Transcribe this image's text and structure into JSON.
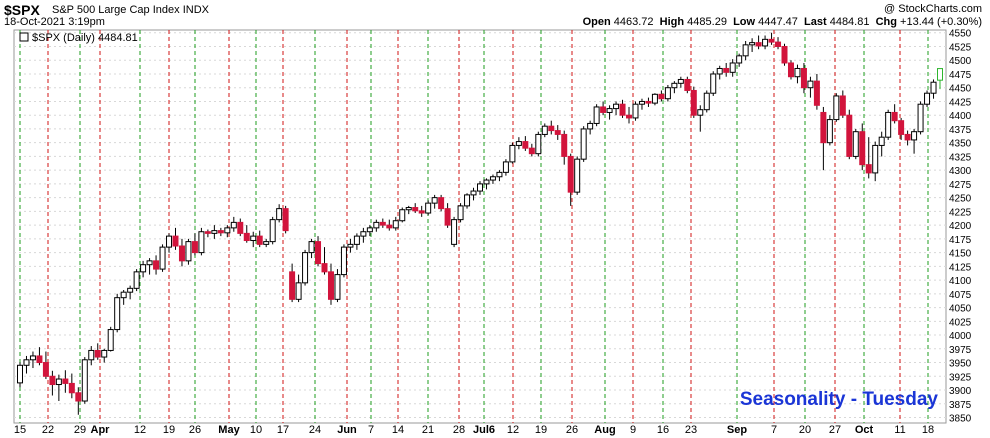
{
  "header": {
    "symbol": "$SPX",
    "name": "S&P 500 Large Cap Index",
    "exchange": "INDX",
    "brand": "@ StockCharts.com",
    "date": "18-Oct-2021 3:19pm",
    "open_label": "Open",
    "open": "4463.72",
    "high_label": "High",
    "high": "4485.29",
    "low_label": "Low",
    "low": "4447.47",
    "last_label": "Last",
    "last": "4484.81",
    "chg_label": "Chg",
    "chg": "+13.44 (+0.30%)"
  },
  "legend": {
    "text": "$SPX (Daily) 4484.81"
  },
  "annotation": {
    "text": "Seasonality - Tuesday",
    "color": "#1a35d6"
  },
  "colors": {
    "down": "#d2143c",
    "up_last": "#2db52d",
    "tuesday_line": "#d21414",
    "month_line": "#1f9e1f",
    "grid": "#d8d8d8"
  },
  "chart_data": {
    "type": "candlestick",
    "title": "$SPX (Daily) 4484.81",
    "xlabel": "",
    "ylabel": "",
    "ylim": [
      3840,
      4555
    ],
    "y_ticks": [
      3850,
      3875,
      3900,
      3925,
      3950,
      3975,
      4000,
      4025,
      4050,
      4075,
      4100,
      4125,
      4150,
      4175,
      4200,
      4225,
      4250,
      4275,
      4300,
      4325,
      4350,
      4375,
      4400,
      4425,
      4450,
      4475,
      4500,
      4525,
      4550
    ],
    "x_tick_labels": [
      "15",
      "22",
      "29",
      "Apr",
      "12",
      "19",
      "26",
      "May",
      "10",
      "17",
      "24",
      "Jun",
      "7",
      "14",
      "21",
      "28",
      "Jul6",
      "12",
      "19",
      "26",
      "Aug",
      "9",
      "16",
      "23",
      "Sep",
      "7",
      "20",
      "27",
      "Oct",
      "11",
      "18"
    ],
    "bars": [
      [
        3913,
        3950,
        3905,
        3945
      ],
      [
        3945,
        3962,
        3930,
        3955
      ],
      [
        3955,
        3970,
        3940,
        3962
      ],
      [
        3962,
        3978,
        3945,
        3950
      ],
      [
        3950,
        3970,
        3920,
        3925
      ],
      [
        3925,
        3935,
        3890,
        3910
      ],
      [
        3910,
        3928,
        3880,
        3920
      ],
      [
        3920,
        3936,
        3895,
        3912
      ],
      [
        3912,
        3930,
        3885,
        3895
      ],
      [
        3895,
        3905,
        3855,
        3880
      ],
      [
        3880,
        3960,
        3875,
        3955
      ],
      [
        3955,
        3980,
        3945,
        3972
      ],
      [
        3972,
        3985,
        3955,
        3960
      ],
      [
        3960,
        3975,
        3950,
        3972
      ],
      [
        3972,
        4015,
        3970,
        4010
      ],
      [
        4010,
        4075,
        4005,
        4068
      ],
      [
        4068,
        4082,
        4055,
        4078
      ],
      [
        4078,
        4090,
        4065,
        4085
      ],
      [
        4085,
        4120,
        4080,
        4115
      ],
      [
        4115,
        4135,
        4105,
        4128
      ],
      [
        4128,
        4140,
        4110,
        4135
      ],
      [
        4135,
        4145,
        4110,
        4120
      ],
      [
        4120,
        4165,
        4115,
        4160
      ],
      [
        4160,
        4185,
        4150,
        4180
      ],
      [
        4180,
        4195,
        4155,
        4162
      ],
      [
        4162,
        4175,
        4125,
        4135
      ],
      [
        4135,
        4175,
        4128,
        4170
      ],
      [
        4170,
        4185,
        4145,
        4150
      ],
      [
        4150,
        4195,
        4145,
        4188
      ],
      [
        4188,
        4192,
        4178,
        4185
      ],
      [
        4185,
        4200,
        4175,
        4190
      ],
      [
        4190,
        4195,
        4180,
        4186
      ],
      [
        4186,
        4200,
        4178,
        4195
      ],
      [
        4195,
        4215,
        4188,
        4205
      ],
      [
        4205,
        4212,
        4180,
        4185
      ],
      [
        4185,
        4200,
        4168,
        4172
      ],
      [
        4172,
        4188,
        4160,
        4180
      ],
      [
        4180,
        4190,
        4160,
        4165
      ],
      [
        4165,
        4175,
        4160,
        4170
      ],
      [
        4170,
        4215,
        4165,
        4210
      ],
      [
        4210,
        4238,
        4205,
        4230
      ],
      [
        4230,
        4235,
        4185,
        4190
      ],
      [
        4115,
        4130,
        4060,
        4065
      ],
      [
        4065,
        4110,
        4060,
        4095
      ],
      [
        4095,
        4155,
        4090,
        4150
      ],
      [
        4150,
        4175,
        4140,
        4170
      ],
      [
        4170,
        4180,
        4125,
        4130
      ],
      [
        4130,
        4160,
        4110,
        4115
      ],
      [
        4115,
        4130,
        4055,
        4065
      ],
      [
        4065,
        4120,
        4060,
        4110
      ],
      [
        4110,
        4165,
        4105,
        4160
      ],
      [
        4160,
        4175,
        4150,
        4165
      ],
      [
        4165,
        4185,
        4155,
        4180
      ],
      [
        4180,
        4195,
        4168,
        4188
      ],
      [
        4188,
        4200,
        4180,
        4195
      ],
      [
        4195,
        4210,
        4188,
        4205
      ],
      [
        4205,
        4212,
        4195,
        4200
      ],
      [
        4200,
        4210,
        4190,
        4195
      ],
      [
        4195,
        4215,
        4190,
        4208
      ],
      [
        4208,
        4232,
        4205,
        4228
      ],
      [
        4228,
        4235,
        4220,
        4232
      ],
      [
        4232,
        4240,
        4222,
        4226
      ],
      [
        4226,
        4235,
        4215,
        4222
      ],
      [
        4222,
        4245,
        4218,
        4240
      ],
      [
        4240,
        4255,
        4230,
        4250
      ],
      [
        4250,
        4255,
        4225,
        4230
      ],
      [
        4230,
        4240,
        4195,
        4200
      ],
      [
        4165,
        4215,
        4160,
        4210
      ],
      [
        4210,
        4240,
        4205,
        4235
      ],
      [
        4235,
        4258,
        4230,
        4255
      ],
      [
        4255,
        4268,
        4245,
        4262
      ],
      [
        4262,
        4280,
        4255,
        4275
      ],
      [
        4275,
        4285,
        4265,
        4282
      ],
      [
        4282,
        4292,
        4275,
        4288
      ],
      [
        4288,
        4300,
        4280,
        4296
      ],
      [
        4296,
        4320,
        4290,
        4315
      ],
      [
        4315,
        4350,
        4312,
        4345
      ],
      [
        4345,
        4360,
        4338,
        4352
      ],
      [
        4352,
        4362,
        4335,
        4340
      ],
      [
        4340,
        4348,
        4325,
        4330
      ],
      [
        4330,
        4370,
        4325,
        4365
      ],
      [
        4365,
        4385,
        4360,
        4380
      ],
      [
        4380,
        4390,
        4365,
        4372
      ],
      [
        4372,
        4382,
        4355,
        4365
      ],
      [
        4365,
        4372,
        4310,
        4325
      ],
      [
        4325,
        4330,
        4235,
        4260
      ],
      [
        4260,
        4325,
        4255,
        4320
      ],
      [
        4320,
        4380,
        4315,
        4375
      ],
      [
        4375,
        4390,
        4365,
        4385
      ],
      [
        4385,
        4420,
        4380,
        4415
      ],
      [
        4415,
        4425,
        4400,
        4405
      ],
      [
        4405,
        4418,
        4392,
        4412
      ],
      [
        4412,
        4425,
        4400,
        4420
      ],
      [
        4420,
        4428,
        4395,
        4400
      ],
      [
        4400,
        4415,
        4385,
        4395
      ],
      [
        4395,
        4425,
        4390,
        4420
      ],
      [
        4420,
        4430,
        4410,
        4425
      ],
      [
        4425,
        4432,
        4415,
        4422
      ],
      [
        4422,
        4440,
        4418,
        4438
      ],
      [
        4438,
        4445,
        4425,
        4430
      ],
      [
        4430,
        4455,
        4425,
        4450
      ],
      [
        4450,
        4462,
        4440,
        4458
      ],
      [
        4458,
        4470,
        4450,
        4465
      ],
      [
        4465,
        4470,
        4440,
        4445
      ],
      [
        4445,
        4452,
        4395,
        4400
      ],
      [
        4400,
        4418,
        4370,
        4410
      ],
      [
        4410,
        4445,
        4405,
        4440
      ],
      [
        4440,
        4480,
        4435,
        4475
      ],
      [
        4475,
        4490,
        4465,
        4485
      ],
      [
        4485,
        4495,
        4470,
        4478
      ],
      [
        4478,
        4502,
        4470,
        4495
      ],
      [
        4495,
        4512,
        4488,
        4508
      ],
      [
        4508,
        4535,
        4500,
        4528
      ],
      [
        4528,
        4540,
        4515,
        4532
      ],
      [
        4532,
        4545,
        4520,
        4526
      ],
      [
        4526,
        4545,
        4520,
        4538
      ],
      [
        4538,
        4550,
        4528,
        4533
      ],
      [
        4533,
        4542,
        4520,
        4525
      ],
      [
        4525,
        4530,
        4490,
        4495
      ],
      [
        4495,
        4500,
        4465,
        4470
      ],
      [
        4470,
        4492,
        4458,
        4485
      ],
      [
        4485,
        4495,
        4440,
        4450
      ],
      [
        4450,
        4470,
        4432,
        4462
      ],
      [
        4462,
        4475,
        4410,
        4418
      ],
      [
        4405,
        4415,
        4300,
        4350
      ],
      [
        4350,
        4400,
        4345,
        4392
      ],
      [
        4392,
        4440,
        4388,
        4435
      ],
      [
        4435,
        4445,
        4395,
        4400
      ],
      [
        4400,
        4410,
        4320,
        4325
      ],
      [
        4325,
        4375,
        4320,
        4370
      ],
      [
        4370,
        4385,
        4300,
        4310
      ],
      [
        4310,
        4360,
        4285,
        4295
      ],
      [
        4295,
        4352,
        4280,
        4345
      ],
      [
        4345,
        4370,
        4325,
        4360
      ],
      [
        4360,
        4410,
        4355,
        4405
      ],
      [
        4405,
        4420,
        4385,
        4390
      ],
      [
        4390,
        4395,
        4355,
        4365
      ],
      [
        4365,
        4372,
        4345,
        4355
      ],
      [
        4355,
        4375,
        4330,
        4370
      ],
      [
        4370,
        4425,
        4365,
        4420
      ],
      [
        4420,
        4445,
        4415,
        4440
      ],
      [
        4440,
        4465,
        4430,
        4460
      ],
      [
        4463.72,
        4485.29,
        4447.47,
        4484.81
      ]
    ]
  }
}
